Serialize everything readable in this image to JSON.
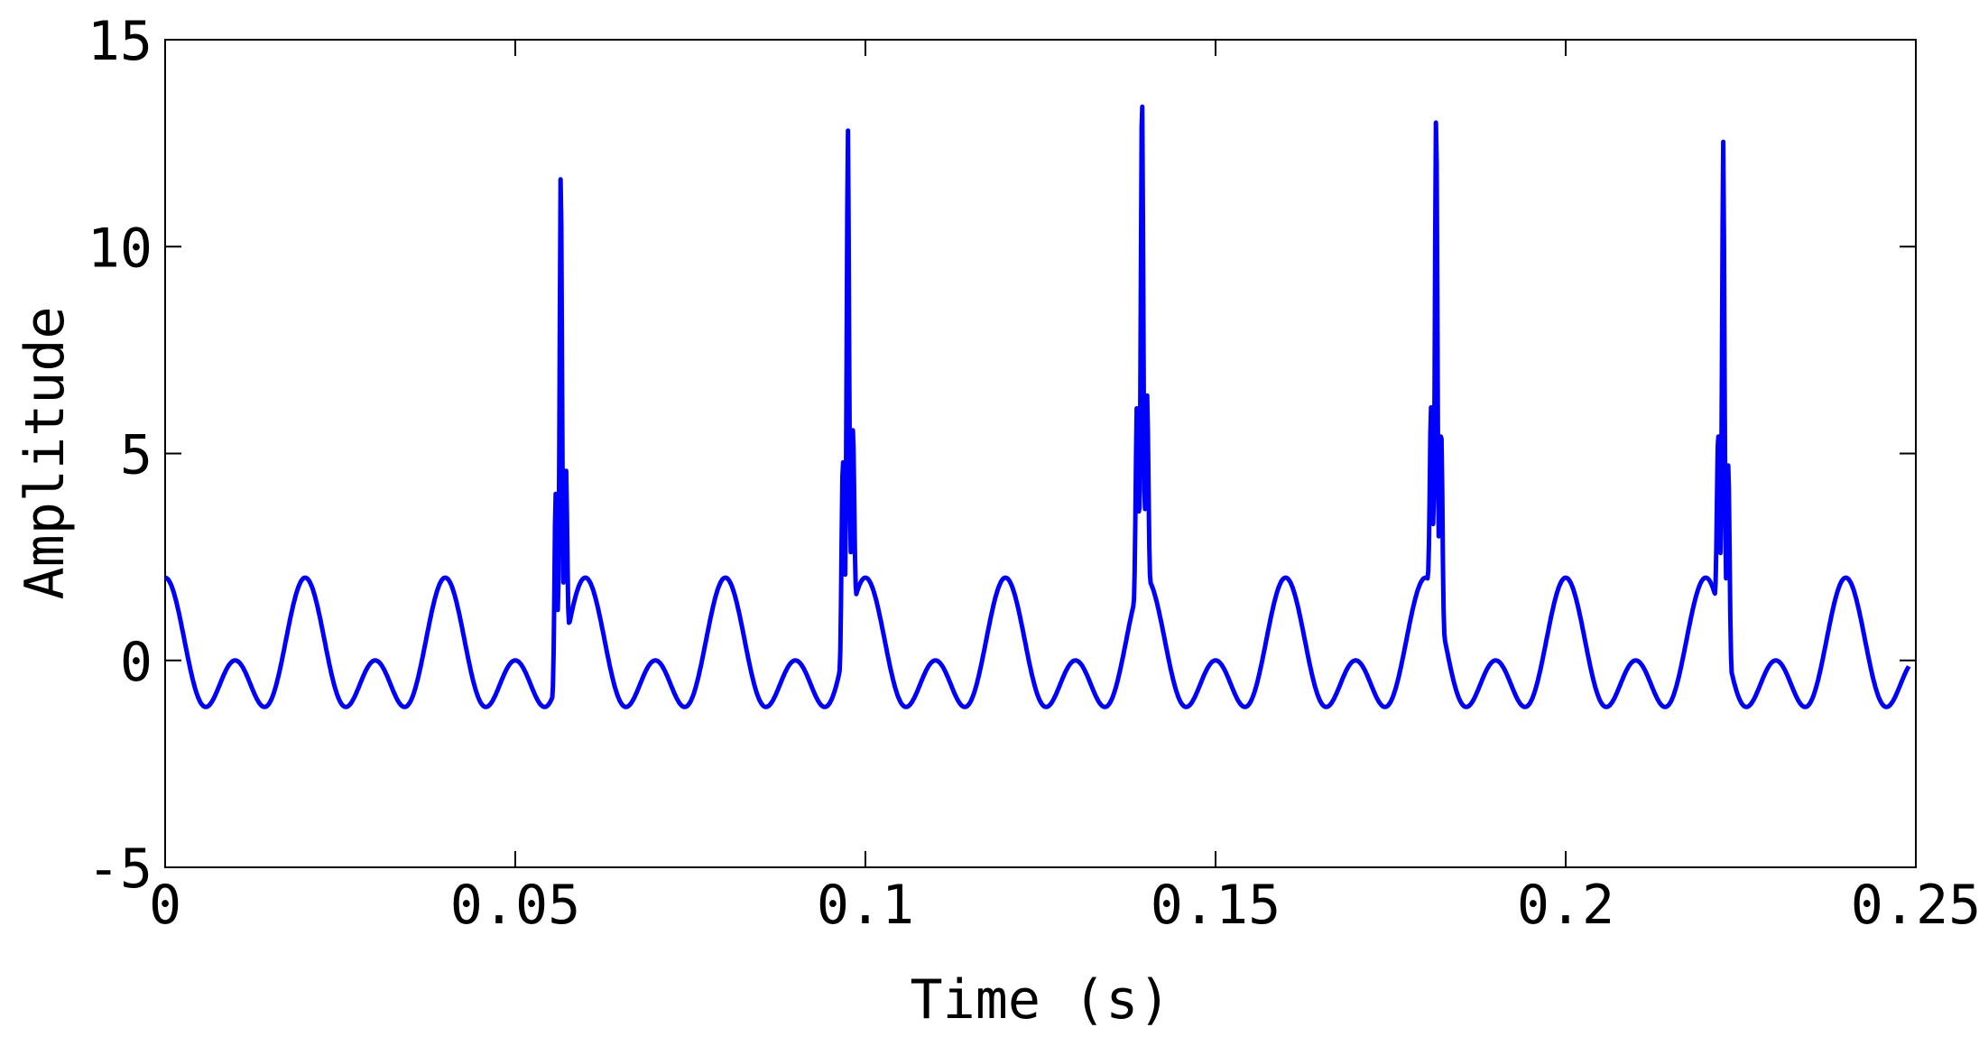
{
  "chart_data": {
    "type": "line",
    "title": "",
    "xlabel": "Time (s)",
    "ylabel": "Amplitude",
    "xlim": [
      0,
      0.25
    ],
    "ylim": [
      -5,
      15
    ],
    "x_ticks": [
      "0",
      "0.05",
      "0.1",
      "0.15",
      "0.2",
      "0.25"
    ],
    "y_ticks": [
      "-5",
      "0",
      "5",
      "10",
      "15"
    ],
    "grid": false,
    "series_color": "#0000ff",
    "signal": {
      "base_components": [
        {
          "frequency_hz": 50,
          "amplitude": 1,
          "phase": "cos"
        },
        {
          "frequency_hz": 100,
          "amplitude": 1,
          "phase": "cos"
        }
      ],
      "spikes": [
        {
          "t": 0.0565,
          "peak": 12.0
        },
        {
          "t": 0.0975,
          "peak": 12.9
        },
        {
          "t": 0.1395,
          "peak": 14.0
        },
        {
          "t": 0.1815,
          "peak": 13.4
        },
        {
          "t": 0.2225,
          "peak": 12.6
        }
      ],
      "t_end": 0.249
    }
  }
}
